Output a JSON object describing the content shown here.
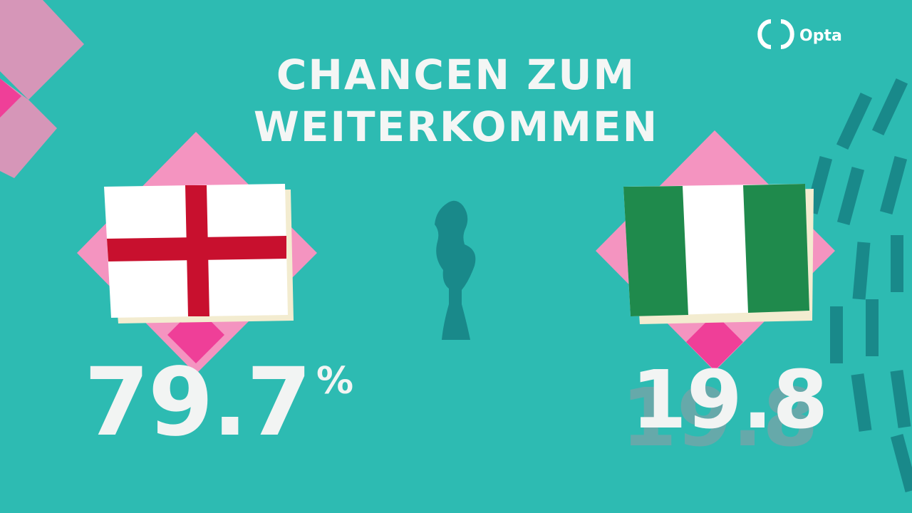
{
  "header": {
    "title_lines": [
      "CHANCEN ZUM",
      "WEITERKOMMEN"
    ],
    "logo": "Opta"
  },
  "teams": [
    {
      "value": 79.7,
      "unit": "%"
    },
    {
      "value": 19.8
    }
  ]
}
